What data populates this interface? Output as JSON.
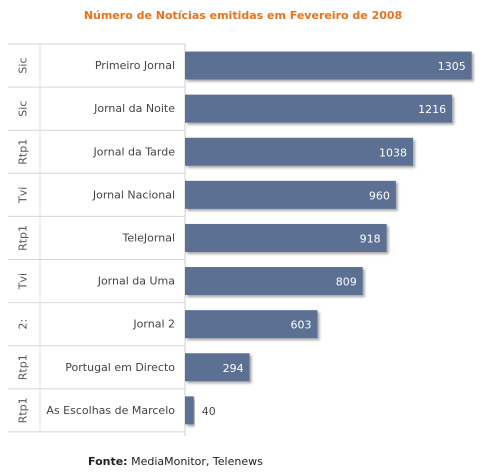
{
  "chart_data": {
    "type": "bar",
    "orientation": "horizontal",
    "title": "Número de Notícias emitidas em Fevereiro de 2008",
    "rows": [
      {
        "channel": "Sic",
        "program": "Primeiro Jornal",
        "value": 1305
      },
      {
        "channel": "Sic",
        "program": "Jornal da Noite",
        "value": 1216
      },
      {
        "channel": "Rtp1",
        "program": "Jornal da Tarde",
        "value": 1038
      },
      {
        "channel": "Tvi",
        "program": "Jornal Nacional",
        "value": 960
      },
      {
        "channel": "Rtp1",
        "program": "TeleJornal",
        "value": 918
      },
      {
        "channel": "Tvi",
        "program": "Jornal da Uma",
        "value": 809
      },
      {
        "channel": "2:",
        "program": "Jornal 2",
        "value": 603
      },
      {
        "channel": "Rtp1",
        "program": "Portugal em Directo",
        "value": 294
      },
      {
        "channel": "Rtp1",
        "program": "As Escolhas de Marcelo",
        "value": 40
      }
    ],
    "xlim": [
      0,
      1320
    ],
    "grid": false,
    "bar_color": "#5b7094",
    "title_color": "#e8731c"
  },
  "footer": {
    "source_label": "Fonte:",
    "source_value": "MediaMonitor, Telenews"
  }
}
